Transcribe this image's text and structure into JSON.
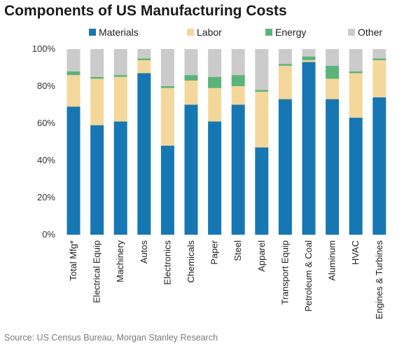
{
  "chart_data": {
    "type": "bar",
    "stacked": true,
    "title": "Components of US Manufacturing Costs",
    "source": "Source: US Census Bureau, Morgan Stanley Research",
    "ylim": [
      0,
      100
    ],
    "yticks": [
      "0%",
      "20%",
      "40%",
      "60%",
      "80%",
      "100%"
    ],
    "legend_position": "top",
    "categories": [
      "Total Mfg*",
      "Electrical Equip",
      "Machinery",
      "Autos",
      "Electronics",
      "Chemicals",
      "Paper",
      "Steel",
      "Apparel",
      "Transport Equip",
      "Petroleum & Coal",
      "Aluminum",
      "HVAC",
      "Engines & Turbines"
    ],
    "series": [
      {
        "name": "Materials",
        "color": "#1777b3",
        "values": [
          69,
          59,
          61,
          87,
          48,
          70,
          61,
          70,
          47,
          73,
          93,
          73,
          63,
          74
        ]
      },
      {
        "name": "Labor",
        "color": "#f4d79a",
        "values": [
          17,
          25,
          24,
          7,
          31,
          13,
          18,
          10,
          30,
          18,
          1,
          11,
          24,
          20
        ]
      },
      {
        "name": "Energy",
        "color": "#5bb37a",
        "values": [
          2,
          1,
          1,
          1,
          1,
          3,
          6,
          6,
          1,
          1,
          2,
          7,
          1,
          1
        ]
      },
      {
        "name": "Other",
        "color": "#cbcbcb",
        "values": [
          12,
          15,
          14,
          5,
          20,
          14,
          15,
          14,
          22,
          8,
          4,
          9,
          12,
          5
        ]
      }
    ]
  }
}
